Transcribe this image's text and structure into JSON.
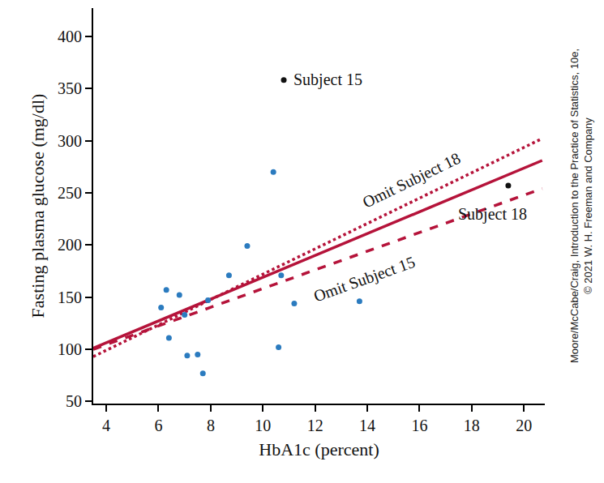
{
  "chart_data": {
    "type": "scatter",
    "x_label": "HbA1c (percent)",
    "y_label": "Fasting plasma glucose (mg/dl)",
    "xlim": [
      3.5,
      20.8
    ],
    "ylim": [
      48,
      427
    ],
    "xticks": [
      4,
      6,
      8,
      10,
      12,
      14,
      16,
      18,
      20
    ],
    "yticks": [
      50,
      100,
      150,
      200,
      250,
      300,
      350,
      400
    ],
    "grid": false,
    "points": {
      "color": "#2b7bbf",
      "x": [
        6.1,
        6.3,
        6.4,
        6.8,
        7.0,
        7.1,
        7.5,
        7.7,
        7.9,
        8.7,
        9.4,
        10.4,
        10.6,
        10.7,
        11.2,
        13.7
      ],
      "values": [
        140,
        157,
        111,
        152,
        133,
        94,
        95,
        77,
        147,
        171,
        199,
        270,
        102,
        171,
        144,
        146
      ]
    },
    "highlighted": [
      {
        "label": "Subject 15",
        "x": 10.8,
        "value": 358,
        "color": "#111111",
        "label_x": 11.1,
        "label_y": 358
      },
      {
        "label": "Subject 18",
        "x": 19.4,
        "value": 257,
        "color": "#111111",
        "label_x": 18.8,
        "label_y": 229
      }
    ],
    "lines": [
      {
        "x": [
          3.5,
          20.7
        ],
        "values": [
          101,
          281
        ],
        "color": "#b5133a",
        "line_style": "solid"
      },
      {
        "label": "Omit Subject 18",
        "x": [
          3.5,
          20.7
        ],
        "values": [
          93,
          302
        ],
        "color": "#b5133a",
        "line_style": "dotted",
        "label_x": 15.7,
        "label_y": 262
      },
      {
        "label": "Omit Subject 15",
        "x": [
          3.5,
          20.7
        ],
        "values": [
          100,
          254
        ],
        "color": "#b5133a",
        "line_style": "dashed",
        "label_x": 13.9,
        "label_y": 167
      }
    ],
    "credit": [
      "Moore/McCabe/Craig, Introduction to the Practice of Statistics, 10e,",
      "© 2021 W. H. Freeman and Company"
    ]
  }
}
